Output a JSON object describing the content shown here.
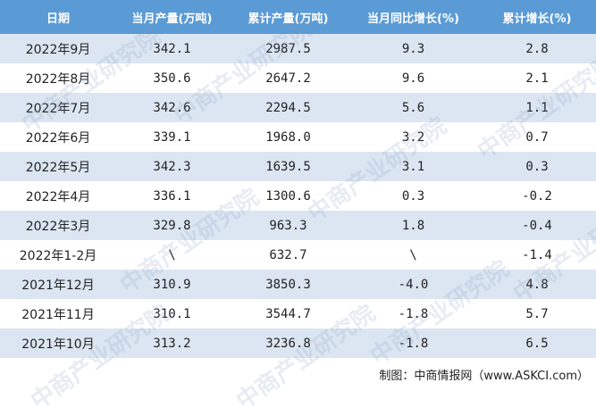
{
  "table": {
    "header": [
      "日期",
      "当月产量(万吨)",
      "累计产量(万吨)",
      "当月同比增长(%)",
      "累计增长(%)"
    ],
    "rows": [
      [
        "2022年9月",
        "342.1",
        "2987.5",
        "9.3",
        "2.8"
      ],
      [
        "2022年8月",
        "350.6",
        "2647.2",
        "9.6",
        "2.1"
      ],
      [
        "2022年7月",
        "342.6",
        "2294.5",
        "5.6",
        "1.1"
      ],
      [
        "2022年6月",
        "339.1",
        "1968.0",
        "3.2",
        "0.7"
      ],
      [
        "2022年5月",
        "342.3",
        "1639.5",
        "3.1",
        "0.3"
      ],
      [
        "2022年4月",
        "336.1",
        "1300.6",
        "0.3",
        "-0.2"
      ],
      [
        "2022年3月",
        "329.8",
        "963.3",
        "1.8",
        "-0.4"
      ],
      [
        "2022年1-2月",
        "\\",
        "632.7",
        "\\",
        "-1.4"
      ],
      [
        "2021年12月",
        "310.9",
        "3850.3",
        "-4.0",
        "4.8"
      ],
      [
        "2021年11月",
        "310.1",
        "3544.7",
        "-1.8",
        "5.7"
      ],
      [
        "2021年10月",
        "313.2",
        "3236.8",
        "-1.8",
        "6.5"
      ]
    ]
  },
  "watermark": "中商产业研究院",
  "footer": "制图：中商情报网（www.ASKCI.com）"
}
